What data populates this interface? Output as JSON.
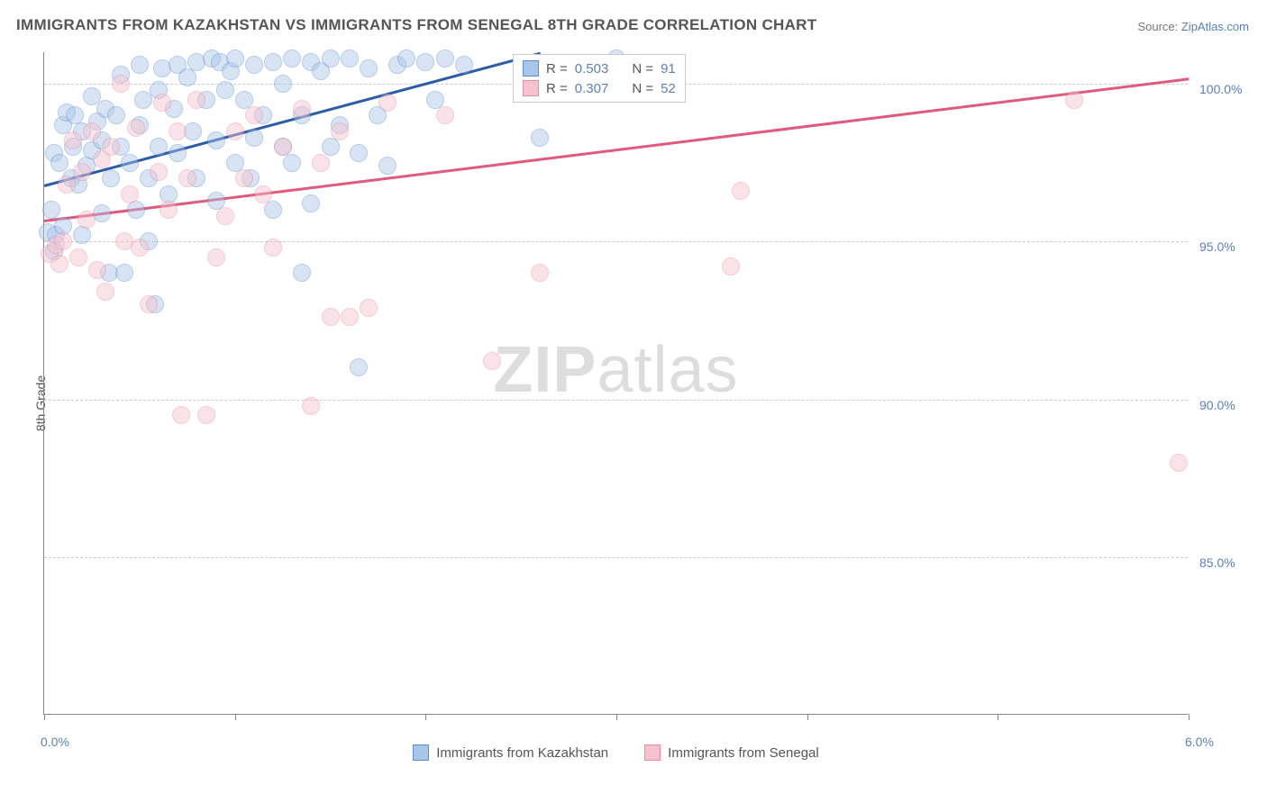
{
  "title": "IMMIGRANTS FROM KAZAKHSTAN VS IMMIGRANTS FROM SENEGAL 8TH GRADE CORRELATION CHART",
  "source_label": "Source: ",
  "source_link": "ZipAtlas.com",
  "y_axis_title": "8th Grade",
  "watermark": {
    "part1": "ZIP",
    "part2": "atlas"
  },
  "chart": {
    "type": "scatter",
    "background_color": "#ffffff",
    "grid_color": "#cccccc",
    "axis_color": "#888888",
    "text_color": "#555555",
    "value_color": "#5b7fb8",
    "xlim": [
      0.0,
      6.0
    ],
    "ylim": [
      80.0,
      101.0
    ],
    "x_ticks": [
      0.0,
      1.0,
      2.0,
      3.0,
      4.0,
      5.0,
      6.0
    ],
    "x_tick_labels": {
      "0": "0.0%",
      "6": "6.0%"
    },
    "y_ticks": [
      85.0,
      90.0,
      95.0,
      100.0
    ],
    "y_tick_labels": [
      "85.0%",
      "90.0%",
      "95.0%",
      "100.0%"
    ],
    "marker_radius": 10,
    "marker_opacity": 0.45,
    "line_width": 2.5,
    "series": [
      {
        "name": "Immigrants from Kazakhstan",
        "color_fill": "#a9c5e8",
        "color_stroke": "#5b8fd0",
        "line_color": "#2a5ca8",
        "R": "0.503",
        "N": "91",
        "trend": {
          "x1": 0.0,
          "y1": 96.8,
          "x2": 2.6,
          "y2": 101.0
        },
        "points": [
          [
            0.02,
            95.3
          ],
          [
            0.04,
            96.0
          ],
          [
            0.05,
            94.7
          ],
          [
            0.05,
            97.8
          ],
          [
            0.08,
            97.5
          ],
          [
            0.06,
            95.2
          ],
          [
            0.1,
            98.7
          ],
          [
            0.1,
            95.5
          ],
          [
            0.12,
            99.1
          ],
          [
            0.14,
            97.0
          ],
          [
            0.15,
            98.0
          ],
          [
            0.16,
            99.0
          ],
          [
            0.18,
            96.8
          ],
          [
            0.2,
            98.5
          ],
          [
            0.2,
            95.2
          ],
          [
            0.22,
            97.4
          ],
          [
            0.25,
            99.6
          ],
          [
            0.25,
            97.9
          ],
          [
            0.28,
            98.8
          ],
          [
            0.3,
            98.2
          ],
          [
            0.3,
            95.9
          ],
          [
            0.32,
            99.2
          ],
          [
            0.34,
            94.0
          ],
          [
            0.35,
            97.0
          ],
          [
            0.38,
            99.0
          ],
          [
            0.4,
            100.3
          ],
          [
            0.4,
            98.0
          ],
          [
            0.42,
            94.0
          ],
          [
            0.45,
            97.5
          ],
          [
            0.48,
            96.0
          ],
          [
            0.5,
            98.7
          ],
          [
            0.5,
            100.6
          ],
          [
            0.52,
            99.5
          ],
          [
            0.55,
            95.0
          ],
          [
            0.55,
            97.0
          ],
          [
            0.58,
            93.0
          ],
          [
            0.6,
            99.8
          ],
          [
            0.6,
            98.0
          ],
          [
            0.62,
            100.5
          ],
          [
            0.65,
            96.5
          ],
          [
            0.68,
            99.2
          ],
          [
            0.7,
            97.8
          ],
          [
            0.7,
            100.6
          ],
          [
            0.75,
            100.2
          ],
          [
            0.78,
            98.5
          ],
          [
            0.8,
            97.0
          ],
          [
            0.8,
            100.7
          ],
          [
            0.85,
            99.5
          ],
          [
            0.88,
            100.8
          ],
          [
            0.9,
            96.3
          ],
          [
            0.9,
            98.2
          ],
          [
            0.92,
            100.7
          ],
          [
            0.95,
            99.8
          ],
          [
            0.98,
            100.4
          ],
          [
            1.0,
            100.8
          ],
          [
            1.0,
            97.5
          ],
          [
            1.05,
            99.5
          ],
          [
            1.08,
            97.0
          ],
          [
            1.1,
            100.6
          ],
          [
            1.1,
            98.3
          ],
          [
            1.15,
            99.0
          ],
          [
            1.2,
            100.7
          ],
          [
            1.2,
            96.0
          ],
          [
            1.25,
            100.0
          ],
          [
            1.25,
            98.0
          ],
          [
            1.3,
            100.8
          ],
          [
            1.3,
            97.5
          ],
          [
            1.35,
            94.0
          ],
          [
            1.35,
            99.0
          ],
          [
            1.4,
            100.7
          ],
          [
            1.4,
            96.2
          ],
          [
            1.45,
            100.4
          ],
          [
            1.5,
            100.8
          ],
          [
            1.5,
            98.0
          ],
          [
            1.55,
            98.7
          ],
          [
            1.6,
            100.8
          ],
          [
            1.65,
            91.0
          ],
          [
            1.65,
            97.8
          ],
          [
            1.7,
            100.5
          ],
          [
            1.75,
            99.0
          ],
          [
            1.8,
            97.4
          ],
          [
            1.85,
            100.6
          ],
          [
            1.9,
            100.8
          ],
          [
            2.0,
            100.7
          ],
          [
            2.05,
            99.5
          ],
          [
            2.1,
            100.8
          ],
          [
            2.2,
            100.6
          ],
          [
            2.6,
            98.3
          ],
          [
            2.95,
            100.6
          ],
          [
            3.0,
            100.8
          ],
          [
            3.15,
            100.6
          ]
        ]
      },
      {
        "name": "Immigrants from Senegal",
        "color_fill": "#f5c2ce",
        "color_stroke": "#e88ba3",
        "line_color": "#e05a7d",
        "R": "0.307",
        "N": "52",
        "trend": {
          "x1": 0.0,
          "y1": 95.7,
          "x2": 6.0,
          "y2": 100.2
        },
        "points": [
          [
            0.03,
            94.6
          ],
          [
            0.06,
            94.9
          ],
          [
            0.08,
            94.3
          ],
          [
            0.1,
            95.0
          ],
          [
            0.12,
            96.8
          ],
          [
            0.15,
            98.2
          ],
          [
            0.18,
            94.5
          ],
          [
            0.2,
            97.2
          ],
          [
            0.22,
            95.7
          ],
          [
            0.25,
            98.5
          ],
          [
            0.28,
            94.1
          ],
          [
            0.3,
            97.6
          ],
          [
            0.32,
            93.4
          ],
          [
            0.35,
            98.0
          ],
          [
            0.4,
            100.0
          ],
          [
            0.42,
            95.0
          ],
          [
            0.45,
            96.5
          ],
          [
            0.48,
            98.6
          ],
          [
            0.5,
            94.8
          ],
          [
            0.55,
            93.0
          ],
          [
            0.6,
            97.2
          ],
          [
            0.62,
            99.4
          ],
          [
            0.65,
            96.0
          ],
          [
            0.7,
            98.5
          ],
          [
            0.72,
            89.5
          ],
          [
            0.75,
            97.0
          ],
          [
            0.8,
            99.5
          ],
          [
            0.85,
            89.5
          ],
          [
            0.9,
            94.5
          ],
          [
            0.95,
            95.8
          ],
          [
            1.0,
            98.5
          ],
          [
            1.05,
            97.0
          ],
          [
            1.1,
            99.0
          ],
          [
            1.15,
            96.5
          ],
          [
            1.2,
            94.8
          ],
          [
            1.25,
            98.0
          ],
          [
            1.35,
            99.2
          ],
          [
            1.4,
            89.8
          ],
          [
            1.45,
            97.5
          ],
          [
            1.5,
            92.6
          ],
          [
            1.55,
            98.5
          ],
          [
            1.6,
            92.6
          ],
          [
            1.7,
            92.9
          ],
          [
            1.8,
            99.4
          ],
          [
            2.1,
            99.0
          ],
          [
            2.35,
            91.2
          ],
          [
            2.6,
            94.0
          ],
          [
            3.0,
            100.5
          ],
          [
            3.6,
            94.2
          ],
          [
            3.65,
            96.6
          ],
          [
            5.4,
            99.5
          ],
          [
            5.95,
            88.0
          ]
        ]
      }
    ],
    "legend_stats": {
      "R_label": "R =",
      "N_label": "N ="
    }
  }
}
